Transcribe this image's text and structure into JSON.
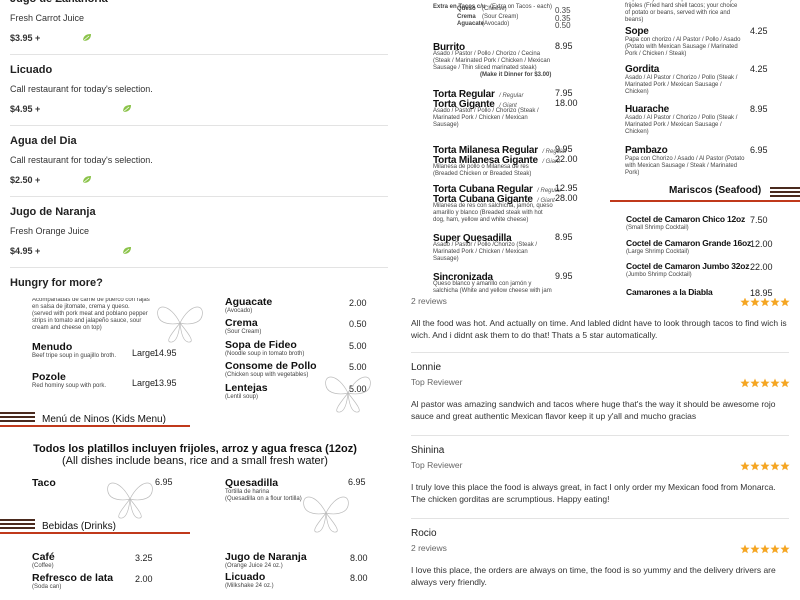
{
  "drinks": {
    "items": [
      {
        "name": "Jugo de Zanahoria",
        "description": "Fresh Carrot Juice",
        "price": "$3.95 +"
      },
      {
        "name": "Licuado",
        "description": "Call restaurant for today's selection.",
        "price": "$4.95 +"
      },
      {
        "name": "Agua del Dia",
        "description": "Call restaurant for today's selection.",
        "price": "$2.50 +"
      },
      {
        "name": "Jugo de Naranja",
        "description": "Fresh Orange Juice",
        "price": "$4.95 +"
      }
    ],
    "footer": "Hungry for more?"
  },
  "menu_top": {
    "extras": {
      "title": "Extra en Tacos c/u",
      "subtitle": "(Extra on Tacos - each)",
      "items": [
        {
          "name": "Queso",
          "translation": "(Cheese)",
          "price": "0.35"
        },
        {
          "name": "Crema",
          "translation": "(Sour Cream)",
          "price": "0.35"
        },
        {
          "name": "Aguacate",
          "translation": "(Avocado)",
          "price": "0.50"
        }
      ]
    },
    "left": [
      {
        "lines": [
          {
            "name": "Burrito",
            "price": "8.95"
          }
        ],
        "description": "Asado / Pastor / Pollo / Chorizo / Cecina (Steak / Marinated Pork / Chicken / Mexican Sausage / Thin sliced marinated steak)",
        "note": "(Make it Dinner for $3.00)"
      },
      {
        "lines": [
          {
            "name": "Torta Regular",
            "size": "/ Regular",
            "price": "7.95"
          },
          {
            "name": "Torta Gigante",
            "size": "/ Giant",
            "price": "18.00"
          }
        ],
        "description": "Asado / Pastor / Pollo / Chorizo (Steak / Marinated Pork / Chicken / Mexican Sausage)"
      },
      {
        "lines": [
          {
            "name": "Torta Milanesa Regular",
            "size": "/ Regular",
            "price": "9.95"
          },
          {
            "name": "Torta Milanesa Gigante",
            "size": "/ Giant",
            "price": "22.00"
          }
        ],
        "description": "Milanesa de pollo o Milanesa de res (Breaded Chicken or Breaded Steak)"
      },
      {
        "lines": [
          {
            "name": "Torta Cubana Regular",
            "size": "/ Regular",
            "price": "12.95"
          },
          {
            "name": "Torta Cubana Gigante",
            "size": "/ Giant",
            "price": "28.00"
          }
        ],
        "description": "Milanesa de res con salchicha, jamón, queso amarillo y blanco (Breaded steak with hot dog, ham, yellow and white cheese)"
      },
      {
        "lines": [
          {
            "name": "Super Quesadilla",
            "price": "8.95"
          }
        ],
        "description": "Asado / Pastor / Pollo /Chorizo (Steak / Marinated Pork / Chicken / Mexican Sausage)"
      },
      {
        "lines": [
          {
            "name": "Sincronizada",
            "price": "9.95"
          }
        ],
        "description": "Queso blanco y amarillo con jamón y salchicha (White and yellow cheese with jam"
      }
    ],
    "top_partial": "Papa o Frijoles acompañado con arroz y frijoles (Fried hard shell tacos; your choice of potato or beans, served with rice and beans)",
    "right": [
      {
        "name": "Sope",
        "price": "4.25",
        "description": "Papa con chorizo / Al Pastor / Pollo / Asado (Potato with Mexican Sausage / Marinated Pork / Chicken / Steak)"
      },
      {
        "name": "Gordita",
        "price": "4.25",
        "description": "Asado / Al Pastor / Chorizo / Pollo (Steak / Marinated Pork / Mexican Sausage / Chicken)"
      },
      {
        "name": "Huarache",
        "price": "8.95",
        "description": "Asado / Al Pastor / Chorizo / Pollo (Steak / Marinated Pork / Mexican Sausage / Chicken)"
      },
      {
        "name": "Pambazo",
        "price": "6.95",
        "description": "Papa con Chorizo / Asado / Al Pastor (Potato with Mexican Sausage / Steak / Marinated Pork)"
      }
    ],
    "seafood": {
      "title": "Mariscos (Seafood)",
      "items": [
        {
          "name": "Coctel de Camaron Chico 12oz",
          "translation": "(Small Shrimp Cocktail)",
          "price": "7.50"
        },
        {
          "name": "Coctel de Camaron Grande 16oz",
          "translation": "(Large Shrimp Cocktail)",
          "price": "12.00"
        },
        {
          "name": "Coctel de Camaron Jumbo 32oz",
          "translation": "(Jumbo Shrimp Cocktail)",
          "price": "22.00"
        },
        {
          "name": "Camarones a la Diabla",
          "price": "18.95"
        }
      ]
    }
  },
  "menu_bottom": {
    "top_partial": "Acompañadas de carne de puerco con rajas en salsa de jitomate, crema y queso. (served with pork meat and poblano pepper strips in tomato and jalapeño sauce, sour cream and cheese on top)",
    "soups": [
      {
        "name": "Menudo",
        "description": "Beef tripe soup in guajillo broth.",
        "size": "Large",
        "price": "14.95"
      },
      {
        "name": "Pozole",
        "description": "Red hominy soup with pork.",
        "size": "Large",
        "price": "13.95"
      }
    ],
    "sides": [
      {
        "name": "Aguacate",
        "translation": "(Avocado)",
        "price": "2.00"
      },
      {
        "name": "Crema",
        "translation": "(Sour Cream)",
        "price": "0.50"
      },
      {
        "name": "Sopa de Fideo",
        "translation": "(Noodle soup in tomato broth)",
        "price": "5.00"
      },
      {
        "name": "Consome de Pollo",
        "translation": "(Chicken soup with vegetables)",
        "price": "5.00"
      },
      {
        "name": "Lentejas",
        "translation": "(Lentil soup)",
        "price": "5.00"
      }
    ],
    "kids": {
      "title": "Menú de Ninos (Kids Menu)",
      "note": "Todos los platillos incluyen frijoles, arroz y agua fresca (12oz)",
      "note_translation": "(All dishes include beans, rice and a small fresh water)",
      "items": [
        {
          "name": "Taco",
          "price": "6.95"
        },
        {
          "name": "Quesadilla",
          "description": "Tortilla de harina",
          "translation": "(Quesadilla on a flour tortilla)",
          "price": "6.95"
        }
      ]
    },
    "drinks": {
      "title": "Bebidas (Drinks)",
      "items": [
        {
          "name": "Café",
          "translation": "(Coffee)",
          "price": "3.25"
        },
        {
          "name": "Refresco de lata",
          "translation": "(Soda can)",
          "price": "2.00"
        },
        {
          "name": "Jugo de Naranja",
          "translation": "(Orange Juice 24 oz.)",
          "price": "8.00"
        },
        {
          "name": "Licuado",
          "translation": "(Milkshake 24 oz.)",
          "price": "8.00"
        }
      ]
    }
  },
  "reviews": [
    {
      "meta": "2 reviews",
      "text": "All the food was hot. And actually on time. And labled didnt have to look through tacos to find wich is wich. And i didnt ask them to do that! Thats a 5 star automatically."
    },
    {
      "name": "Lonnie",
      "meta": "Top Reviewer",
      "text": "Al pastor was amazing sandwich and tacos where huge that's the way it should be awesome rojo sauce and great authentic Mexican flavor keep it up y'all and mucho gracias"
    },
    {
      "name": "Shinina",
      "meta": "Top Reviewer",
      "text": "I truly love this place the food is always great, in fact I only order my Mexican food from Monarca. The chicken gorditas are scrumptious. Happy eating!"
    },
    {
      "name": "Rocio",
      "meta": "2 reviews",
      "text": "I love this place, the orders are always on time, the food is so yummy and the delivery drivers are always very friendly."
    }
  ]
}
